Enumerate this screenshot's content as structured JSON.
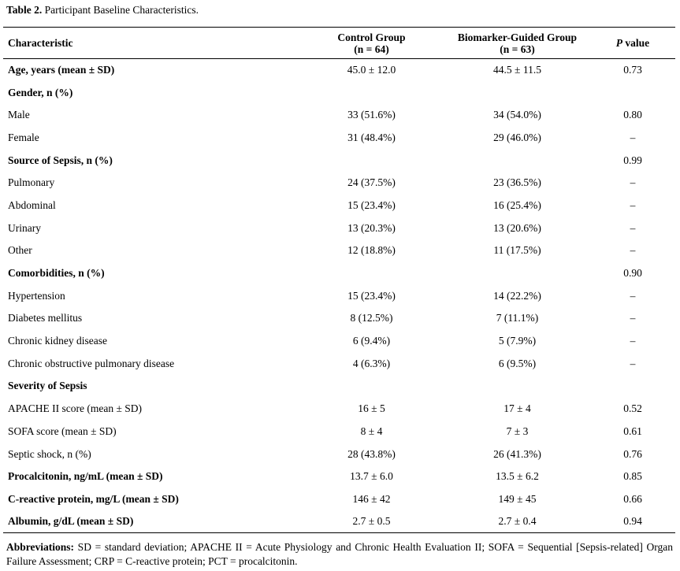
{
  "caption": {
    "label": "Table 2.",
    "text": " Participant Baseline Characteristics."
  },
  "headers": {
    "characteristic": "Characteristic",
    "control_line1": "Control Group",
    "control_line2": "(n = 64)",
    "biomarker_line1": "Biomarker-Guided Group",
    "biomarker_line2": "(n = 63)",
    "p_italic": "P",
    "p_rest": " value"
  },
  "rows": [
    {
      "label": "Age, years (mean ± SD)",
      "control": "45.0 ± 12.0",
      "biomarker": "44.5 ± 11.5",
      "p": "0.73",
      "bold": true
    },
    {
      "label": "Gender, n (%)",
      "control": "",
      "biomarker": "",
      "p": "",
      "bold": true
    },
    {
      "label": "Male",
      "control": "33 (51.6%)",
      "biomarker": "34 (54.0%)",
      "p": "0.80",
      "bold": false
    },
    {
      "label": "Female",
      "control": "31 (48.4%)",
      "biomarker": "29 (46.0%)",
      "p": "–",
      "bold": false
    },
    {
      "label": "Source of Sepsis, n (%)",
      "control": "",
      "biomarker": "",
      "p": "0.99",
      "bold": true
    },
    {
      "label": "Pulmonary",
      "control": "24 (37.5%)",
      "biomarker": "23 (36.5%)",
      "p": "–",
      "bold": false
    },
    {
      "label": "Abdominal",
      "control": "15 (23.4%)",
      "biomarker": "16 (25.4%)",
      "p": "–",
      "bold": false
    },
    {
      "label": "Urinary",
      "control": "13 (20.3%)",
      "biomarker": "13 (20.6%)",
      "p": "–",
      "bold": false
    },
    {
      "label": "Other",
      "control": "12 (18.8%)",
      "biomarker": "11 (17.5%)",
      "p": "–",
      "bold": false
    },
    {
      "label": "Comorbidities, n (%)",
      "control": "",
      "biomarker": "",
      "p": "0.90",
      "bold": true
    },
    {
      "label": "Hypertension",
      "control": "15 (23.4%)",
      "biomarker": "14 (22.2%)",
      "p": "–",
      "bold": false
    },
    {
      "label": "Diabetes mellitus",
      "control": "8 (12.5%)",
      "biomarker": "7 (11.1%)",
      "p": "–",
      "bold": false
    },
    {
      "label": "Chronic kidney disease",
      "control": "6 (9.4%)",
      "biomarker": "5 (7.9%)",
      "p": "–",
      "bold": false
    },
    {
      "label": "Chronic obstructive pulmonary disease",
      "control": "4 (6.3%)",
      "biomarker": "6 (9.5%)",
      "p": "–",
      "bold": false
    },
    {
      "label": "Severity of Sepsis",
      "control": "",
      "biomarker": "",
      "p": "",
      "bold": true
    },
    {
      "label": "APACHE II score (mean ± SD)",
      "control": "16 ± 5",
      "biomarker": "17 ± 4",
      "p": "0.52",
      "bold": false
    },
    {
      "label": "SOFA score (mean ± SD)",
      "control": "8 ± 4",
      "biomarker": "7 ± 3",
      "p": "0.61",
      "bold": false
    },
    {
      "label": "Septic shock, n (%)",
      "control": "28 (43.8%)",
      "biomarker": "26 (41.3%)",
      "p": "0.76",
      "bold": false
    },
    {
      "label": "Procalcitonin, ng/mL (mean ± SD)",
      "control": "13.7 ± 6.0",
      "biomarker": "13.5 ± 6.2",
      "p": "0.85",
      "bold": true
    },
    {
      "label": "C-reactive protein, mg/L (mean ± SD)",
      "control": "146 ± 42",
      "biomarker": "149 ± 45",
      "p": "0.66",
      "bold": true
    },
    {
      "label": "Albumin, g/dL (mean ± SD)",
      "control": "2.7 ± 0.5",
      "biomarker": "2.7 ± 0.4",
      "p": "0.94",
      "bold": true
    }
  ],
  "footnote": {
    "label": "Abbreviations:",
    "text": " SD = standard deviation; APACHE II = Acute Physiology and Chronic Health Evaluation II; SOFA = Sequential [Sepsis-related] Organ Failure Assessment; CRP = C-reactive protein; PCT = procalcitonin."
  }
}
